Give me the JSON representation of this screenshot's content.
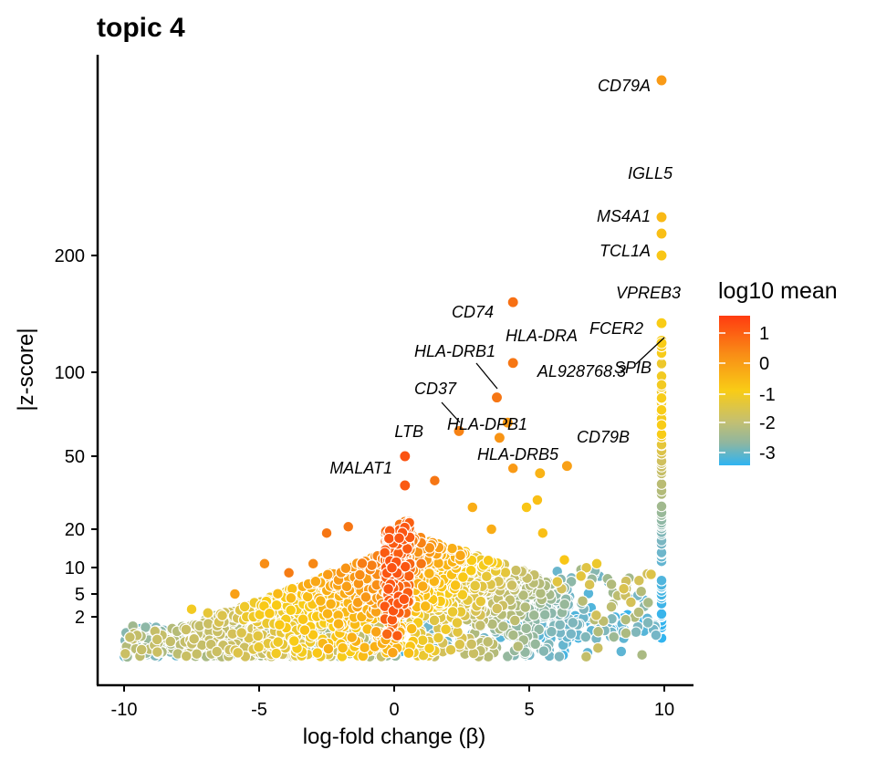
{
  "chart_data": {
    "type": "scatter",
    "title": "topic 4",
    "xlabel": "log-fold change (β)",
    "ylabel": "|z-score|",
    "xlim": [
      -11,
      11
    ],
    "x_ticks": [
      -10,
      -5,
      0,
      5,
      10
    ],
    "x_tick_labels": [
      "-10",
      "-5",
      "0",
      "5",
      "10"
    ],
    "y_scale": "sqrt-like transformed",
    "y_ticks": [
      2,
      5,
      10,
      20,
      50,
      100,
      200
    ],
    "y_tick_labels": [
      "2",
      "5",
      "10",
      "20",
      "50",
      "100",
      "200"
    ],
    "grid": false,
    "legend": {
      "title": "log10 mean",
      "placement": "right",
      "ticks": [
        1,
        0,
        -1,
        -2,
        -3
      ],
      "tick_labels": [
        "1",
        "0",
        "-1",
        "-2",
        "-3"
      ],
      "colors": [
        "#ff3b10",
        "#f98b16",
        "#f9cc16",
        "#c6c06e",
        "#8fb6a0",
        "#2eb4f2"
      ]
    },
    "labeled_points": [
      {
        "gene": "CD79A",
        "x": 9.9,
        "y": 520,
        "log10_mean": -0.2
      },
      {
        "gene": "IGLL5",
        "x": 9.9,
        "y": 270,
        "log10_mean": -0.7
      },
      {
        "gene": "MS4A1",
        "x": 9.9,
        "y": 240,
        "log10_mean": -0.8
      },
      {
        "gene": "TCL1A",
        "x": 9.9,
        "y": 200,
        "log10_mean": -0.9
      },
      {
        "gene": "VPREB3",
        "x": 9.9,
        "y": 142,
        "log10_mean": -1.0
      },
      {
        "gene": "CD74",
        "x": 4.4,
        "y": 160,
        "log10_mean": 0.5
      },
      {
        "gene": "HLA-DRA",
        "x": 4.4,
        "y": 108,
        "log10_mean": 0.4
      },
      {
        "gene": "FCER2",
        "x": 9.9,
        "y": 127,
        "log10_mean": -1.0
      },
      {
        "gene": "SPIB",
        "x": 9.9,
        "y": 125,
        "log10_mean": -1.0
      },
      {
        "gene": "HLA-DRB1",
        "x": 3.8,
        "y": 85,
        "log10_mean": 0.4
      },
      {
        "gene": "AL928768.3",
        "x": 4.2,
        "y": 70,
        "log10_mean": -0.2
      },
      {
        "gene": "CD37",
        "x": 2.4,
        "y": 65,
        "log10_mean": 0.2
      },
      {
        "gene": "HLA-DPB1",
        "x": 3.9,
        "y": 61,
        "log10_mean": -0.1
      },
      {
        "gene": "LTB",
        "x": 0.4,
        "y": 50,
        "log10_mean": 1.0
      },
      {
        "gene": "CD79B",
        "x": 6.4,
        "y": 46,
        "log10_mean": -0.3
      },
      {
        "gene": "HLA-DRB5",
        "x": 5.4,
        "y": 43,
        "log10_mean": -0.6
      },
      {
        "gene": "MALAT1",
        "x": 0.4,
        "y": 38,
        "log10_mean": 0.9
      }
    ]
  }
}
